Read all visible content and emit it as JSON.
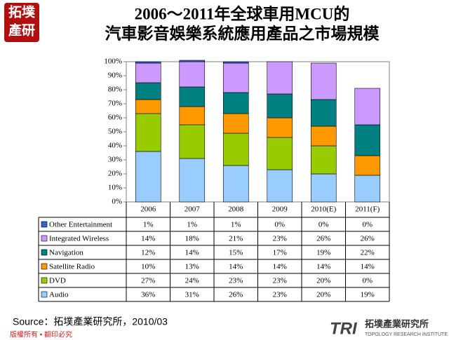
{
  "logo": {
    "line1": "拓墣",
    "line2": "產研"
  },
  "chart_data": {
    "type": "bar",
    "stacked": true,
    "title": [
      "2006～2011年全球車用MCU的",
      "汽車影音娛樂系統應用產品之市場規模"
    ],
    "categories": [
      "2006",
      "2007",
      "2008",
      "2009",
      "2010(E)",
      "2011(F)"
    ],
    "series": [
      {
        "name": "Other Entertainment",
        "color": "#3366cc",
        "values": [
          1,
          1,
          1,
          0,
          0,
          0
        ],
        "value_labels": [
          "1%",
          "1%",
          "1%",
          "0%",
          "0%",
          "0%"
        ]
      },
      {
        "name": "Integrated Wireless",
        "color": "#cc99ff",
        "values": [
          14,
          18,
          21,
          23,
          26,
          26
        ],
        "value_labels": [
          "14%",
          "18%",
          "21%",
          "23%",
          "26%",
          "26%"
        ]
      },
      {
        "name": "Navigation",
        "color": "#008080",
        "values": [
          12,
          14,
          15,
          17,
          19,
          22
        ],
        "value_labels": [
          "12%",
          "14%",
          "15%",
          "17%",
          "19%",
          "22%"
        ]
      },
      {
        "name": "Satellite Radio",
        "color": "#ff9900",
        "values": [
          10,
          13,
          14,
          14,
          14,
          14
        ],
        "value_labels": [
          "10%",
          "13%",
          "14%",
          "14%",
          "14%",
          "14%"
        ]
      },
      {
        "name": "DVD",
        "color": "#99cc00",
        "values": [
          27,
          24,
          23,
          23,
          20,
          0
        ],
        "value_labels": [
          "27%",
          "24%",
          "23%",
          "23%",
          "20%",
          "0%"
        ]
      },
      {
        "name": "Audio",
        "color": "#99ccff",
        "values": [
          36,
          31,
          26,
          23,
          20,
          19
        ],
        "value_labels": [
          "36%",
          "31%",
          "26%",
          "23%",
          "20%",
          "19%"
        ]
      }
    ],
    "ylim": [
      0,
      100
    ],
    "yticks": [
      {
        "value": 0,
        "label": "0%"
      },
      {
        "value": 10,
        "label": "10%"
      },
      {
        "value": 20,
        "label": "20%"
      },
      {
        "value": 30,
        "label": "30%"
      },
      {
        "value": 40,
        "label": "40%"
      },
      {
        "value": 50,
        "label": "50%"
      },
      {
        "value": 60,
        "label": "60%"
      },
      {
        "value": 70,
        "label": "70%"
      },
      {
        "value": 80,
        "label": "80%"
      },
      {
        "value": 90,
        "label": "90%"
      },
      {
        "value": 100,
        "label": "100%"
      }
    ],
    "grid": false
  },
  "source": "Source：拓墣產業研究所，2010/03",
  "footer": "版權所有 • 翻印必究",
  "brand": {
    "mark": "TRI",
    "name": "拓墣產業研究所",
    "english": "TOPOLOGY RESEARCH INSTITUTE"
  }
}
